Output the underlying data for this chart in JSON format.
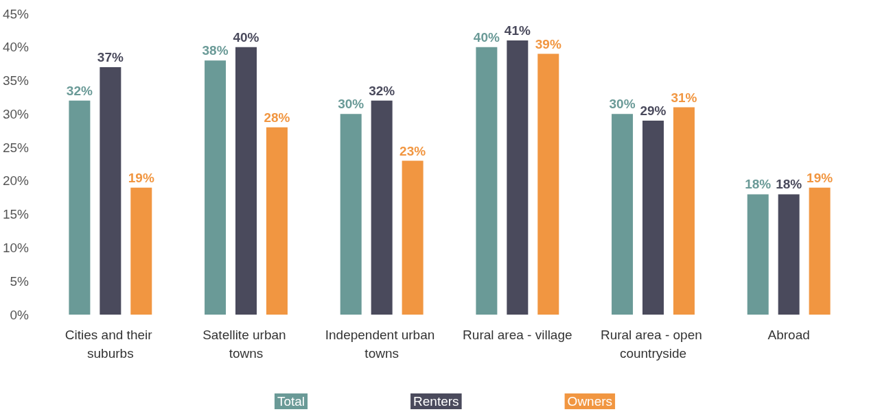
{
  "chart_data": {
    "type": "bar",
    "categories": [
      "Cities and their suburbs",
      "Satellite urban towns",
      "Independent urban towns",
      "Rural area - village",
      "Rural area - open countryside",
      "Abroad"
    ],
    "series": [
      {
        "name": "Total",
        "color": "#6a9a97",
        "values": [
          32,
          38,
          30,
          40,
          30,
          18
        ],
        "value_labels": [
          "32%",
          "38%",
          "30%",
          "40%",
          "30%",
          "18%"
        ]
      },
      {
        "name": "Renters",
        "color": "#4a4a5c",
        "values": [
          37,
          40,
          32,
          41,
          29,
          18
        ],
        "value_labels": [
          "37%",
          "40%",
          "32%",
          "41%",
          "29%",
          "18%"
        ]
      },
      {
        "name": "Owners",
        "color": "#f19641",
        "values": [
          19,
          28,
          23,
          39,
          31,
          19
        ],
        "value_labels": [
          "19%",
          "28%",
          "23%",
          "39%",
          "31%",
          "19%"
        ]
      }
    ],
    "ylim": [
      0,
      45
    ],
    "yticks": [
      {
        "value": 0,
        "label": "0%"
      },
      {
        "value": 5,
        "label": "5%"
      },
      {
        "value": 10,
        "label": "10%"
      },
      {
        "value": 15,
        "label": "15%"
      },
      {
        "value": 20,
        "label": "20%"
      },
      {
        "value": 25,
        "label": "25%"
      },
      {
        "value": 30,
        "label": "30%"
      },
      {
        "value": 35,
        "label": "35%"
      },
      {
        "value": 40,
        "label": "40%"
      },
      {
        "value": 45,
        "label": "45%"
      }
    ],
    "grid": false,
    "legend": "bottom"
  }
}
